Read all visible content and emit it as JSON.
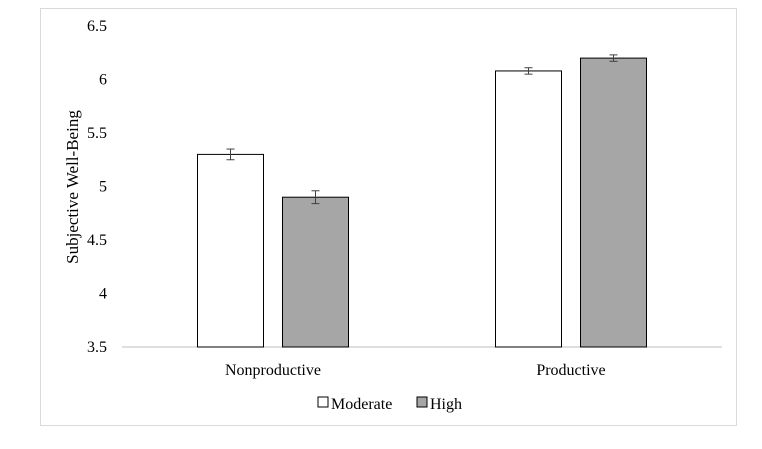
{
  "chart_data": {
    "type": "bar",
    "categories": [
      "Nonproductive",
      "Productive"
    ],
    "series": [
      {
        "name": "Moderate",
        "values": [
          5.3,
          6.08
        ],
        "errors": [
          0.05,
          0.03
        ],
        "color": "#ffffff"
      },
      {
        "name": "High",
        "values": [
          4.9,
          6.2
        ],
        "errors": [
          0.06,
          0.03
        ],
        "color": "#a6a6a6"
      }
    ],
    "title": "",
    "xlabel": "",
    "ylabel": "Subjective Well-Being",
    "ylim": [
      3.5,
      6.5
    ],
    "yticks": [
      "3.5",
      "4",
      "4.5",
      "5",
      "5.5",
      "6",
      "6.5"
    ],
    "grid": false,
    "legend_position": "bottom"
  }
}
